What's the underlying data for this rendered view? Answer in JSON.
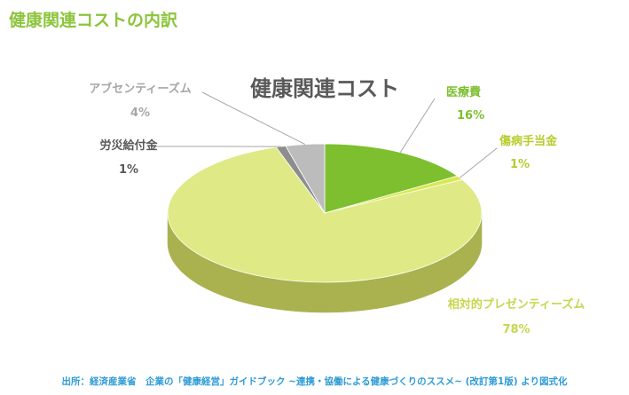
{
  "slide": {
    "title": "健康関連コストの内訳",
    "source": "出所：経済産業省　企業の「健康経営」ガイドブック ~連携・協働による健康づくりのススメ~ (改訂第1版) より図式化"
  },
  "colors": {
    "title": "#8cc43c",
    "source": "#2e9bd6",
    "chart_title": "#595959"
  },
  "chart_data": {
    "type": "pie",
    "style": "3d",
    "title": "健康関連コスト",
    "slices": [
      {
        "label": "医療費",
        "value_label": "16%",
        "value": 16,
        "color": "#7dbf2e",
        "side": "#4f8a12",
        "label_color": "#7dbf2e"
      },
      {
        "label": "傷病手当金",
        "value_label": "1%",
        "value": 1,
        "color": "#d9e84f",
        "side": "#9aa630",
        "label_color": "#b7cc2b"
      },
      {
        "label": "相対的プレゼンティーズム",
        "value_label": "78%",
        "value": 78,
        "color": "#dfe986",
        "side": "#a9b24e",
        "label_color": "#c6d64d"
      },
      {
        "label": "労災給付金",
        "value_label": "1%",
        "value": 1,
        "color": "#8d8d8d",
        "side": "#5f5f5f",
        "label_color": "#595959"
      },
      {
        "label": "アブセンティーズム",
        "value_label": "4%",
        "value": 4,
        "color": "#bcbcbc",
        "side": "#858585",
        "label_color": "#a6a6a6"
      }
    ]
  }
}
